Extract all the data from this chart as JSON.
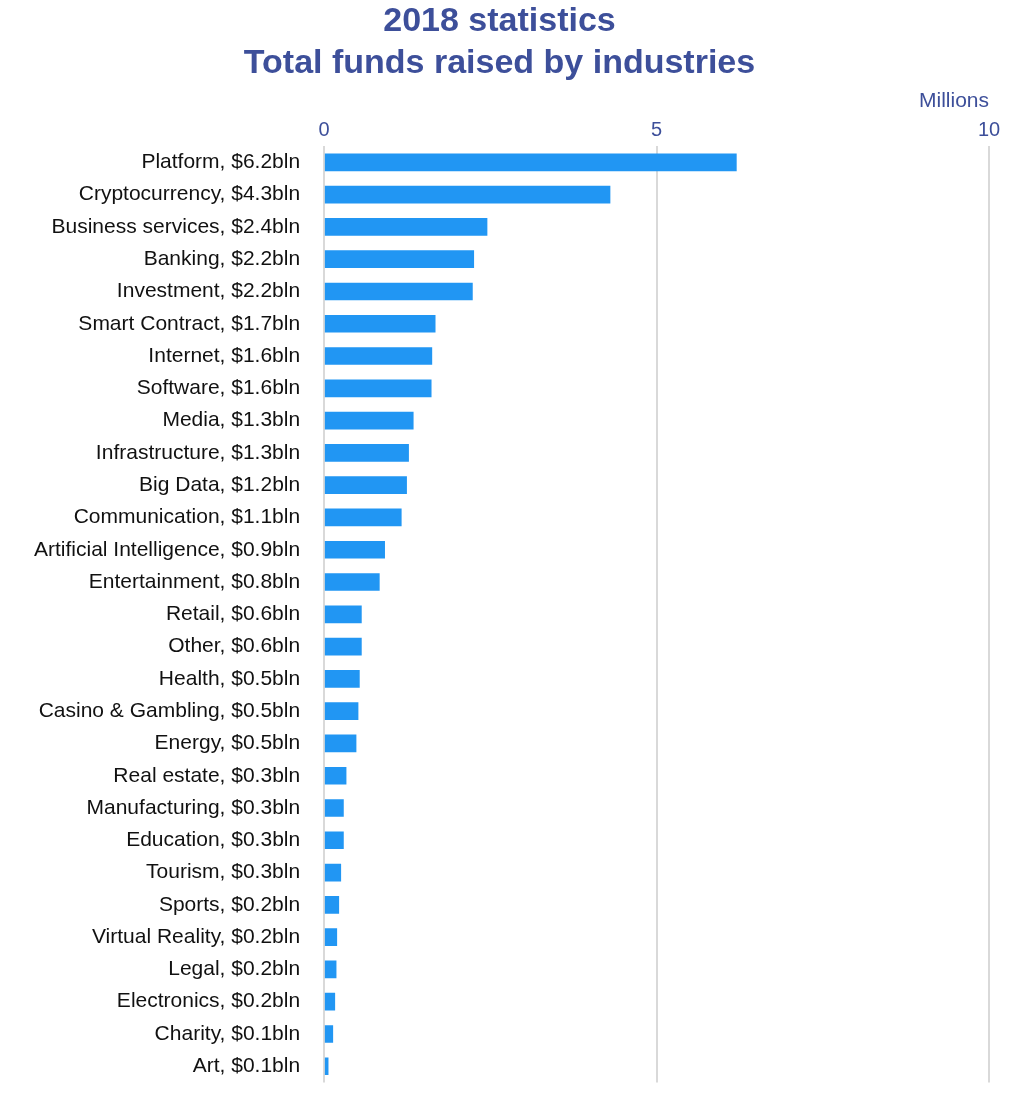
{
  "chart_data": {
    "type": "bar",
    "orientation": "horizontal",
    "title": "2018 statistics\nTotal funds raised by industries",
    "xlabel": "Millions",
    "categories": [
      "Platform, $6.2bln",
      "Cryptocurrency, $4.3bln",
      "Business services, $2.4bln",
      "Banking, $2.2bln",
      "Investment, $2.2bln",
      "Smart Contract, $1.7bln",
      "Internet, $1.6bln",
      "Software, $1.6bln",
      "Media, $1.3bln",
      "Infrastructure, $1.3bln",
      "Big Data, $1.2bln",
      "Communication, $1.1bln",
      "Artificial Intelligence, $0.9bln",
      "Entertainment, $0.8bln",
      "Retail, $0.6bln",
      "Other, $0.6bln",
      "Health, $0.5bln",
      "Casino & Gambling, $0.5bln",
      "Energy, $0.5bln",
      "Real estate, $0.3bln",
      "Manufacturing, $0.3bln",
      "Education, $0.3bln",
      "Tourism, $0.3bln",
      "Sports, $0.2bln",
      "Virtual Reality, $0.2bln",
      "Legal, $0.2bln",
      "Electronics, $0.2bln",
      "Charity, $0.1bln",
      "Art, $0.1bln"
    ],
    "values": [
      6.2,
      4.3,
      2.45,
      2.25,
      2.23,
      1.67,
      1.62,
      1.61,
      1.34,
      1.27,
      1.24,
      1.16,
      0.91,
      0.83,
      0.56,
      0.56,
      0.53,
      0.51,
      0.48,
      0.33,
      0.29,
      0.29,
      0.25,
      0.22,
      0.19,
      0.18,
      0.16,
      0.13,
      0.06
    ],
    "color": "#2196f3",
    "xlim": [
      0,
      10
    ],
    "xticks": [
      0,
      5,
      10
    ],
    "grid": "x"
  }
}
